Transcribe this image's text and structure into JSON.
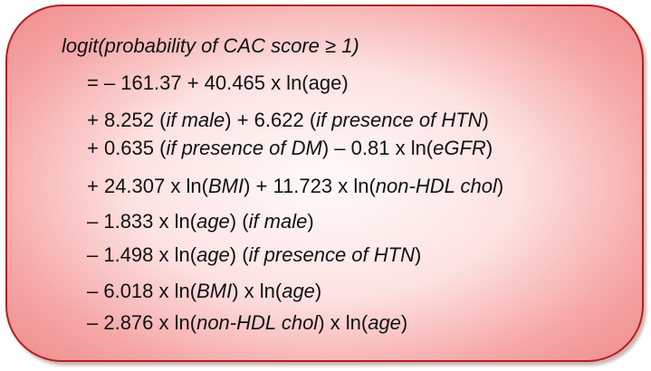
{
  "formula": {
    "lines": [
      [
        {
          "text": "logit(probability of CAC score ≥ 1)",
          "italic": true
        }
      ],
      [
        {
          "text": "= – 161.37 + 40.465 x ln(age)",
          "italic": false
        }
      ],
      [
        {
          "text": "+ 8.252 (",
          "italic": false
        },
        {
          "text": "if male",
          "italic": true
        },
        {
          "text": ") + 6.622 (",
          "italic": false
        },
        {
          "text": "if presence of HTN",
          "italic": true
        },
        {
          "text": ")",
          "italic": false
        }
      ],
      [
        {
          "text": "+ 0.635 (",
          "italic": false
        },
        {
          "text": "if presence of DM",
          "italic": true
        },
        {
          "text": ") – 0.81 x ln(",
          "italic": false
        },
        {
          "text": "eGFR",
          "italic": true
        },
        {
          "text": ")",
          "italic": false
        }
      ],
      [
        {
          "text": "+ 24.307 x ln(",
          "italic": false
        },
        {
          "text": "BMI",
          "italic": true
        },
        {
          "text": ") + 11.723 x ln(",
          "italic": false
        },
        {
          "text": "non-HDL chol",
          "italic": true
        },
        {
          "text": ")",
          "italic": false
        }
      ],
      [
        {
          "text": "– 1.833 x ln(",
          "italic": false
        },
        {
          "text": "age",
          "italic": true
        },
        {
          "text": ") (",
          "italic": false
        },
        {
          "text": "if male",
          "italic": true
        },
        {
          "text": ")",
          "italic": false
        }
      ],
      [
        {
          "text": "– 1.498 x ln(",
          "italic": false
        },
        {
          "text": "age",
          "italic": true
        },
        {
          "text": ") (",
          "italic": false
        },
        {
          "text": "if presence of HTN",
          "italic": true
        },
        {
          "text": ")",
          "italic": false
        }
      ],
      [
        {
          "text": "– 6.018 x ln(",
          "italic": false
        },
        {
          "text": "BMI",
          "italic": true
        },
        {
          "text": ") x ln(",
          "italic": false
        },
        {
          "text": "age",
          "italic": true
        },
        {
          "text": ")",
          "italic": false
        }
      ],
      [
        {
          "text": "– 2.876 x ln(",
          "italic": false
        },
        {
          "text": "non-HDL chol",
          "italic": true
        },
        {
          "text": ") x ln(",
          "italic": false
        },
        {
          "text": "age",
          "italic": true
        },
        {
          "text": ")",
          "italic": false
        }
      ]
    ]
  },
  "colors": {
    "border": "#b01f1f",
    "fill_center": "#fffafa",
    "fill_edge": "#ef8d8d",
    "text": "#111111"
  }
}
